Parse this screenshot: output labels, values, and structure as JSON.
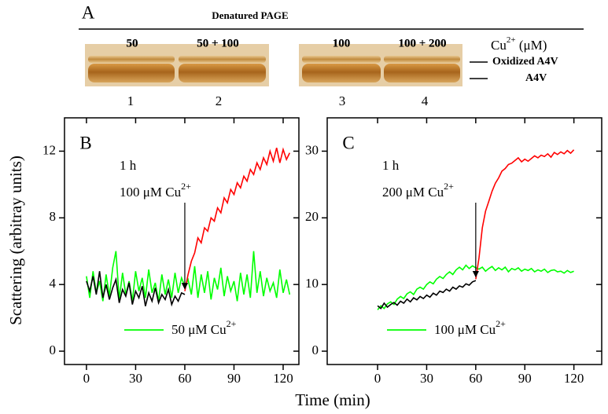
{
  "panel_a": {
    "label": "A",
    "title": "Denatured PAGE",
    "lanes": [
      "50",
      "50 + 100",
      "100",
      "100 + 200"
    ],
    "lane_numbers": [
      "1",
      "2",
      "3",
      "4"
    ],
    "unit": {
      "text": "Cu",
      "sup": "2+",
      "suffix": " (μM)"
    },
    "bands": [
      "Oxidized A4V",
      "A4V"
    ]
  },
  "shared": {
    "ylabel": "Scattering (arbitray units)",
    "xlabel": "Time (min)"
  },
  "chart_data": [
    {
      "type": "line",
      "panel_label": "B",
      "xlim": [
        -13.4,
        129.6
      ],
      "ylim": [
        -0.8,
        14
      ],
      "xticks": [
        0,
        30,
        60,
        90,
        120
      ],
      "yticks": [
        0,
        4,
        8,
        12
      ],
      "annotation": {
        "time": "1 h",
        "text": "100 μM Cu",
        "sup": "2+"
      },
      "legend": "lower center",
      "series": [
        {
          "name": "50 μM Cu",
          "name_sup": "2+",
          "color": "#00ff00",
          "x": [
            0,
            2,
            4,
            6,
            8,
            10,
            12,
            14,
            16,
            18,
            20,
            22,
            24,
            26,
            28,
            30,
            32,
            34,
            36,
            38,
            40,
            42,
            44,
            46,
            48,
            50,
            52,
            54,
            56,
            58,
            60,
            62,
            64,
            66,
            68,
            70,
            72,
            74,
            76,
            78,
            80,
            82,
            84,
            86,
            88,
            90,
            92,
            94,
            96,
            98,
            100,
            102,
            104,
            106,
            108,
            110,
            112,
            114,
            116,
            118,
            120,
            122,
            124
          ],
          "values": [
            4.5,
            3.2,
            4.8,
            3.5,
            4.2,
            3.0,
            4.6,
            3.3,
            5.0,
            6.0,
            3.1,
            4.7,
            3.4,
            4.2,
            3.0,
            4.8,
            3.6,
            4.4,
            3.2,
            4.9,
            3.5,
            4.1,
            3.0,
            4.6,
            3.4,
            4.3,
            3.2,
            4.7,
            3.5,
            4.4,
            3.9,
            4.3,
            3.4,
            5.1,
            3.2,
            4.6,
            3.5,
            4.8,
            3.1,
            4.4,
            3.7,
            5.0,
            3.3,
            4.5,
            3.6,
            4.2,
            3.0,
            4.7,
            3.4,
            4.6,
            3.2,
            6.0,
            3.5,
            4.8,
            3.3,
            4.4,
            3.6,
            4.1,
            3.2,
            4.9,
            3.5,
            4.3,
            3.4
          ]
        },
        {
          "color": "#000000",
          "x": [
            0,
            2,
            4,
            6,
            8,
            10,
            12,
            14,
            16,
            18,
            20,
            22,
            24,
            26,
            28,
            30,
            32,
            34,
            36,
            38,
            40,
            42,
            44,
            46,
            48,
            50,
            52,
            54,
            56,
            58,
            60
          ],
          "values": [
            4.2,
            3.6,
            4.5,
            3.4,
            4.8,
            3.2,
            4.0,
            3.1,
            3.8,
            4.3,
            2.9,
            3.7,
            3.3,
            4.1,
            2.8,
            3.6,
            3.2,
            3.9,
            2.7,
            3.5,
            3.0,
            3.8,
            2.9,
            3.4,
            3.1,
            3.7,
            2.8,
            3.3,
            3.0,
            3.5,
            3.4
          ]
        },
        {
          "color": "#ff0000",
          "x": [
            60,
            62,
            64,
            66,
            68,
            70,
            72,
            74,
            76,
            78,
            80,
            82,
            84,
            86,
            88,
            90,
            92,
            94,
            96,
            98,
            100,
            102,
            104,
            106,
            108,
            110,
            112,
            114,
            116,
            118,
            120,
            122,
            124
          ],
          "values": [
            3.6,
            4.6,
            5.4,
            5.9,
            6.8,
            6.5,
            7.4,
            7.2,
            8.0,
            7.8,
            8.6,
            8.3,
            9.2,
            8.9,
            9.7,
            9.4,
            10.1,
            9.8,
            10.5,
            10.2,
            10.9,
            10.6,
            11.3,
            10.9,
            11.6,
            11.2,
            12.0,
            11.4,
            12.2,
            11.3,
            12.1,
            11.5,
            11.9
          ]
        }
      ]
    },
    {
      "type": "line",
      "panel_label": "C",
      "xlim": [
        -30.8,
        137
      ],
      "ylim": [
        -2,
        35
      ],
      "xticks": [
        0,
        30,
        60,
        90,
        120
      ],
      "yticks": [
        0,
        10,
        20,
        30
      ],
      "annotation": {
        "time": "1 h",
        "text": "200 μM Cu",
        "sup": "2+"
      },
      "legend": "lower center",
      "series": [
        {
          "name": "100 μM Cu",
          "name_sup": "2+",
          "color": "#00ff00",
          "x": [
            0,
            2,
            4,
            6,
            8,
            10,
            12,
            14,
            16,
            18,
            20,
            22,
            24,
            26,
            28,
            30,
            32,
            34,
            36,
            38,
            40,
            42,
            44,
            46,
            48,
            50,
            52,
            54,
            56,
            58,
            60,
            62,
            64,
            66,
            68,
            70,
            72,
            74,
            76,
            78,
            80,
            82,
            84,
            86,
            88,
            90,
            92,
            94,
            96,
            98,
            100,
            102,
            104,
            106,
            108,
            110,
            112,
            114,
            116,
            118,
            120
          ],
          "values": [
            6.2,
            6.8,
            6.4,
            7.1,
            7.4,
            7.0,
            7.8,
            8.2,
            7.9,
            8.6,
            8.9,
            8.5,
            9.3,
            9.6,
            9.3,
            10.0,
            10.4,
            10.1,
            10.8,
            11.2,
            10.9,
            11.5,
            11.9,
            11.5,
            12.2,
            12.6,
            12.2,
            12.9,
            12.4,
            12.8,
            12.5,
            12.3,
            12.6,
            12.0,
            12.4,
            12.7,
            12.1,
            12.5,
            12.2,
            12.6,
            11.9,
            12.4,
            12.2,
            12.5,
            12.0,
            12.3,
            12.1,
            12.4,
            11.9,
            12.2,
            12.0,
            12.3,
            11.8,
            12.1,
            12.2,
            11.9,
            12.0,
            11.7,
            12.1,
            11.8,
            12.0
          ]
        },
        {
          "color": "#000000",
          "x": [
            0,
            2,
            4,
            6,
            8,
            10,
            12,
            14,
            16,
            18,
            20,
            22,
            24,
            26,
            28,
            30,
            32,
            34,
            36,
            38,
            40,
            42,
            44,
            46,
            48,
            50,
            52,
            54,
            56,
            58,
            60
          ],
          "values": [
            6.8,
            6.4,
            7.2,
            6.6,
            7.0,
            7.3,
            6.9,
            7.5,
            7.2,
            7.8,
            7.4,
            8.0,
            7.7,
            8.2,
            7.9,
            8.4,
            8.1,
            8.7,
            8.4,
            9.0,
            8.8,
            9.3,
            9.0,
            9.6,
            9.3,
            9.8,
            9.6,
            10.1,
            9.9,
            10.4,
            10.6
          ]
        },
        {
          "color": "#ff0000",
          "x": [
            60,
            62,
            64,
            66,
            68,
            70,
            72,
            74,
            76,
            78,
            80,
            82,
            84,
            86,
            88,
            90,
            92,
            94,
            96,
            98,
            100,
            102,
            104,
            106,
            108,
            110,
            112,
            114,
            116,
            118,
            120
          ],
          "values": [
            10.8,
            14.0,
            18.5,
            21.0,
            22.5,
            24.0,
            25.2,
            26.0,
            27.0,
            27.4,
            28.0,
            28.2,
            28.6,
            29.0,
            28.4,
            28.8,
            28.5,
            28.9,
            29.3,
            29.0,
            29.4,
            29.2,
            29.6,
            29.1,
            29.8,
            29.5,
            29.9,
            29.6,
            30.1,
            29.7,
            30.2
          ]
        }
      ]
    }
  ]
}
